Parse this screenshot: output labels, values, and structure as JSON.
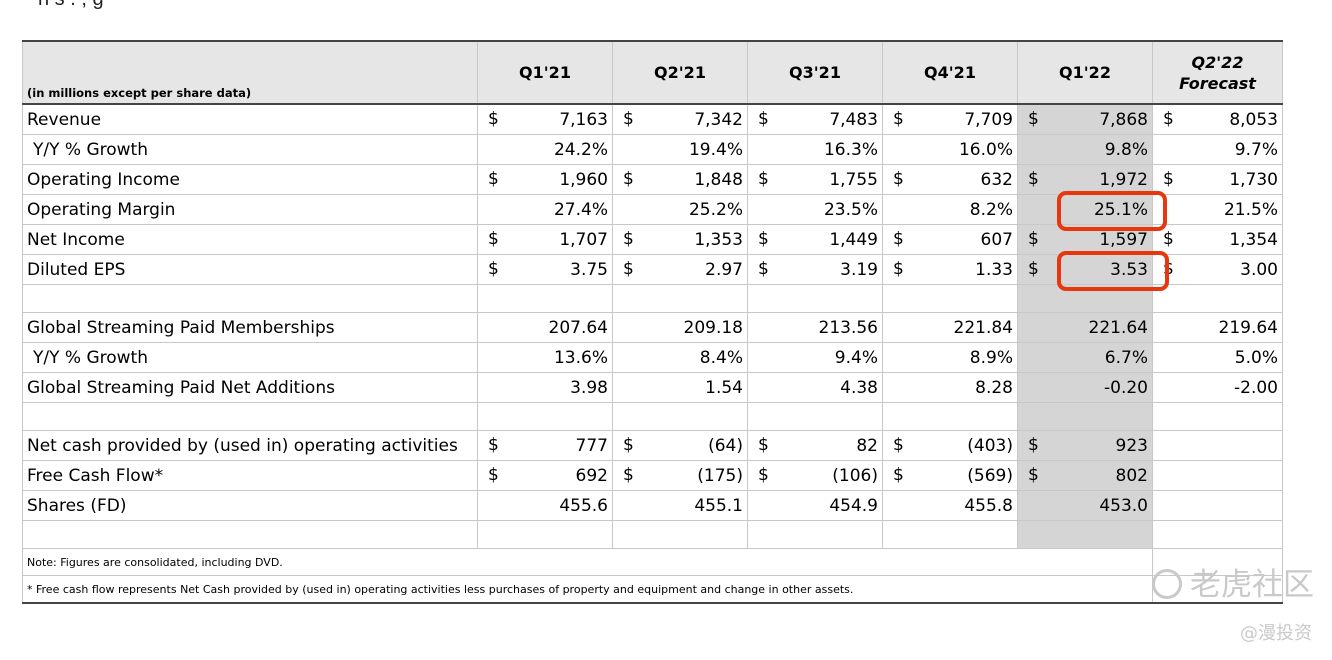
{
  "intro_text": "n  s  .     ,  g",
  "header": {
    "units_label": "(in millions except per share data)",
    "columns": [
      "Q1'21",
      "Q2'21",
      "Q3'21",
      "Q4'21",
      "Q1'22"
    ],
    "forecast_quarter": "Q2'22",
    "forecast_label": "Forecast"
  },
  "rows": {
    "revenue": {
      "label": "Revenue",
      "cur": "$",
      "values": [
        "7,163",
        "7,342",
        "7,483",
        "7,709",
        "7,868",
        "8,053"
      ]
    },
    "revenue_growth": {
      "label": "Y/Y % Growth",
      "values": [
        "24.2%",
        "19.4%",
        "16.3%",
        "16.0%",
        "9.8%",
        "9.7%"
      ]
    },
    "operating_income": {
      "label": "Operating Income",
      "cur": "$",
      "values": [
        "1,960",
        "1,848",
        "1,755",
        "632",
        "1,972",
        "1,730"
      ]
    },
    "operating_margin": {
      "label": "Operating Margin",
      "values": [
        "27.4%",
        "25.2%",
        "23.5%",
        "8.2%",
        "25.1%",
        "21.5%"
      ]
    },
    "net_income": {
      "label": "Net Income",
      "cur": "$",
      "values": [
        "1,707",
        "1,353",
        "1,449",
        "607",
        "1,597",
        "1,354"
      ]
    },
    "diluted_eps": {
      "label": "Diluted EPS",
      "cur": "$",
      "values": [
        "3.75",
        "2.97",
        "3.19",
        "1.33",
        "3.53",
        "3.00"
      ]
    },
    "memberships": {
      "label": "Global Streaming Paid Memberships",
      "values": [
        "207.64",
        "209.18",
        "213.56",
        "221.84",
        "221.64",
        "219.64"
      ]
    },
    "membership_growth": {
      "label": "Y/Y % Growth",
      "values": [
        "13.6%",
        "8.4%",
        "9.4%",
        "8.9%",
        "6.7%",
        "5.0%"
      ]
    },
    "net_additions": {
      "label": "Global Streaming Paid Net Additions",
      "values": [
        "3.98",
        "1.54",
        "4.38",
        "8.28",
        "-0.20",
        "-2.00"
      ]
    },
    "operating_cash": {
      "label": "Net cash provided by (used in) operating activities",
      "cur": "$",
      "values": [
        "777",
        "(64)",
        "82",
        "(403)",
        "923",
        ""
      ]
    },
    "free_cash_flow": {
      "label": "Free Cash Flow*",
      "cur": "$",
      "values": [
        "692",
        "(175)",
        "(106)",
        "(569)",
        "802",
        ""
      ]
    },
    "shares": {
      "label": "Shares (FD)",
      "values": [
        "455.6",
        "455.1",
        "454.9",
        "455.8",
        "453.0",
        ""
      ]
    }
  },
  "notes": {
    "note1": "Note: Figures are consolidated, including DVD.",
    "note2": "* Free cash flow represents Net Cash provided by (used in) operating activities less purchases of property and equipment and change in other assets."
  },
  "highlight_color": "#e8360e",
  "watermark": {
    "brand": "老虎社区",
    "handle": "@漫投资",
    "icon": "tiger-community-logo-icon"
  }
}
